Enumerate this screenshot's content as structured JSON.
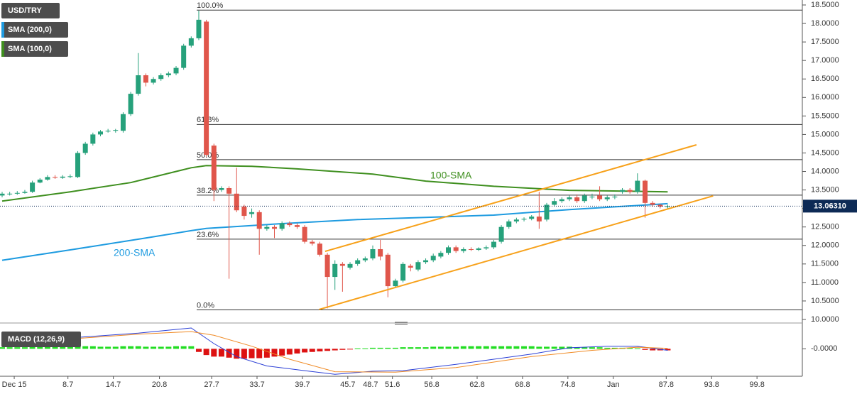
{
  "chart_data": [
    {
      "type": "candlestick",
      "xlim": [
        0,
        105.7
      ],
      "xticks": [
        {
          "value": 1.6,
          "label": "Dec 15"
        },
        8.7,
        14.7,
        20.8,
        27.7,
        33.7,
        39.7,
        45.7,
        48.7,
        51.6,
        56.8,
        62.8,
        68.8,
        74.8,
        {
          "value": 80.8,
          "label": "Jan"
        },
        87.8,
        93.8,
        99.8
      ],
      "ylim": [
        10,
        18.5
      ],
      "yticks": [
        {
          "value": 10,
          "label": "10.0000"
        },
        {
          "value": 10.5,
          "label": "10.5000"
        },
        {
          "value": 11,
          "label": "11.0000"
        },
        {
          "value": 11.5,
          "label": "11.5000"
        },
        {
          "value": 12,
          "label": "12.0000"
        },
        {
          "value": 12.5,
          "label": "12.5000"
        },
        {
          "value": 13,
          "label": "13.0000"
        },
        {
          "value": 13.5,
          "label": "13.5000"
        },
        {
          "value": 14,
          "label": "14.0000"
        },
        {
          "value": 14.5,
          "label": "14.5000"
        },
        {
          "value": 15,
          "label": "15.0000"
        },
        {
          "value": 15.5,
          "label": "15.5000"
        },
        {
          "value": 16,
          "label": "16.0000"
        },
        {
          "value": 16.5,
          "label": "16.5000"
        },
        {
          "value": 17,
          "label": "17.0000"
        },
        {
          "value": 17.5,
          "label": "17.5000"
        },
        {
          "value": 18,
          "label": "18.0000"
        },
        {
          "value": 18.5,
          "label": "18.5000"
        }
      ],
      "grid": false,
      "candles": {
        "name": "USD/TRY",
        "up_color": "#26a17b",
        "down_color": "#e0564b",
        "open": [
          13.35,
          13.4,
          13.4,
          13.42,
          13.45,
          13.7,
          13.78,
          13.85,
          13.83,
          13.86,
          13.85,
          14.5,
          14.75,
          15.0,
          15.08,
          15.1,
          15.1,
          15.55,
          16.1,
          16.6,
          16.4,
          16.5,
          16.6,
          16.65,
          16.8,
          17.4,
          17.6,
          18.05,
          14.7,
          13.5,
          13.55,
          13.4,
          13.05,
          12.85,
          12.9,
          12.45,
          12.5,
          12.45,
          12.6,
          12.55,
          12.5,
          12.1,
          12.05,
          11.75,
          11.15,
          11.5,
          11.4,
          11.5,
          11.6,
          11.65,
          11.9,
          11.75,
          10.9,
          11.05,
          11.45,
          11.35,
          11.55,
          11.6,
          11.7,
          11.8,
          11.95,
          11.85,
          11.9,
          11.88,
          11.92,
          11.95,
          12.1,
          12.5,
          12.65,
          12.7,
          12.72,
          12.78,
          12.7,
          13.1,
          13.2,
          13.25,
          13.3,
          13.2,
          13.3,
          13.35,
          13.25,
          13.3,
          13.45,
          13.5,
          13.45,
          13.75,
          13.15,
          13.1,
          13.05
        ],
        "high": [
          13.45,
          13.45,
          13.47,
          13.5,
          13.75,
          13.82,
          13.9,
          13.9,
          13.9,
          13.92,
          14.55,
          14.8,
          15.05,
          15.12,
          15.15,
          15.15,
          15.6,
          16.15,
          17.2,
          16.65,
          16.55,
          16.65,
          16.7,
          16.85,
          17.45,
          17.65,
          18.35,
          18.1,
          14.75,
          13.6,
          13.6,
          14.1,
          13.1,
          13.0,
          12.95,
          12.55,
          12.55,
          12.65,
          12.65,
          12.6,
          12.55,
          12.15,
          12.1,
          11.8,
          11.6,
          11.55,
          11.55,
          11.65,
          11.7,
          12.0,
          12.15,
          11.8,
          11.1,
          11.55,
          11.5,
          11.6,
          11.65,
          11.78,
          11.85,
          12.0,
          12.0,
          11.95,
          11.95,
          11.95,
          12.0,
          12.15,
          12.55,
          12.7,
          12.75,
          12.76,
          12.82,
          13.45,
          13.15,
          13.28,
          13.3,
          13.35,
          13.38,
          13.4,
          13.4,
          13.6,
          13.35,
          13.38,
          13.55,
          13.55,
          13.95,
          13.78,
          13.2,
          13.12,
          13.1
        ],
        "low": [
          13.3,
          13.35,
          13.37,
          13.4,
          13.42,
          13.68,
          13.75,
          13.8,
          13.8,
          13.82,
          13.82,
          14.45,
          14.7,
          14.95,
          15.05,
          15.05,
          15.05,
          15.5,
          16.05,
          16.3,
          16.35,
          16.45,
          16.55,
          16.6,
          16.75,
          17.35,
          17.55,
          14.4,
          13.2,
          13.45,
          11.1,
          12.9,
          12.7,
          12.75,
          11.75,
          12.4,
          12.2,
          12.4,
          12.5,
          12.45,
          12.05,
          12.0,
          11.7,
          10.3,
          10.8,
          10.75,
          11.35,
          11.45,
          11.55,
          11.6,
          11.6,
          10.6,
          10.85,
          11.0,
          11.3,
          11.3,
          11.5,
          11.55,
          11.65,
          11.75,
          11.8,
          11.8,
          11.85,
          11.85,
          11.88,
          11.9,
          12.05,
          12.45,
          12.6,
          12.65,
          12.68,
          12.45,
          12.65,
          13.05,
          13.15,
          13.2,
          13.15,
          13.15,
          13.25,
          13.2,
          13.2,
          13.25,
          13.4,
          13.4,
          13.4,
          12.75,
          13.05,
          13.0,
          13.0
        ],
        "close": [
          13.4,
          13.4,
          13.42,
          13.45,
          13.7,
          13.78,
          13.85,
          13.83,
          13.86,
          13.87,
          14.5,
          14.75,
          15.0,
          15.08,
          15.1,
          15.12,
          15.55,
          16.1,
          16.6,
          16.4,
          16.5,
          16.6,
          16.65,
          16.8,
          17.4,
          17.6,
          18.1,
          14.45,
          13.5,
          13.55,
          13.4,
          12.95,
          12.8,
          12.9,
          12.45,
          12.5,
          12.45,
          12.6,
          12.55,
          12.5,
          12.1,
          12.05,
          11.75,
          11.15,
          11.5,
          11.45,
          11.5,
          11.6,
          11.65,
          11.9,
          11.7,
          10.9,
          11.05,
          11.5,
          11.4,
          11.55,
          11.6,
          11.72,
          11.8,
          11.95,
          11.85,
          11.9,
          11.88,
          11.92,
          11.95,
          12.1,
          12.5,
          12.65,
          12.7,
          12.72,
          12.78,
          12.65,
          13.1,
          13.2,
          13.25,
          13.3,
          13.2,
          13.35,
          13.32,
          13.25,
          13.3,
          13.32,
          13.5,
          13.45,
          13.75,
          13.15,
          13.1,
          13.05,
          13.06
        ]
      },
      "overlays": [
        {
          "name": "SMA (200,0)",
          "color": "#1e9be0",
          "x": [
            0,
            9,
            19,
            25,
            27,
            37,
            47,
            56,
            65,
            75,
            88
          ],
          "values": [
            11.6,
            11.88,
            12.2,
            12.4,
            12.46,
            12.59,
            12.7,
            12.76,
            12.82,
            12.97,
            13.13
          ]
        },
        {
          "name": "SMA (100,0)",
          "color": "#3f8f1f",
          "x": [
            0,
            9,
            17,
            25,
            27,
            33,
            39,
            49,
            56,
            65,
            75,
            88
          ],
          "values": [
            13.2,
            13.45,
            13.7,
            14.1,
            14.16,
            14.14,
            14.07,
            13.93,
            13.74,
            13.6,
            13.49,
            13.45
          ]
        }
      ],
      "annotations": [
        "200-SMA",
        "100-SMA"
      ],
      "trendlines": [
        {
          "color": "#f7a11a",
          "x": [
            42.7,
            91.8
          ],
          "values": [
            11.84,
            14.72
          ]
        },
        {
          "color": "#f7a11a",
          "x": [
            41.9,
            94
          ],
          "values": [
            10.27,
            13.34
          ]
        }
      ],
      "levels": [
        {
          "label": "100.0%",
          "value": 18.36
        },
        {
          "label": "61.8%",
          "value": 15.27
        },
        {
          "label": "50.0%",
          "value": 14.32
        },
        {
          "label": "38.2%",
          "value": 13.36
        },
        {
          "label": "23.6%",
          "value": 12.17
        },
        {
          "label": "0.0%",
          "value": 10.26
        }
      ],
      "last_price": {
        "value": 13.0631,
        "label": "13.06310",
        "color": "#0d2a55"
      }
    },
    {
      "type": "macd",
      "title": "MACD (12,26,9)",
      "ylim": [
        -0.5,
        0.4
      ],
      "yticks": [
        {
          "value": 0,
          "label": "-0.0000"
        }
      ],
      "histogram": {
        "up_color": "#22dd22",
        "down_color": "#dd1111",
        "values": [
          0.03,
          0.03,
          0.03,
          0.03,
          0.04,
          0.04,
          0.04,
          0.04,
          0.04,
          0.04,
          0.05,
          0.05,
          0.05,
          0.04,
          0.04,
          0.04,
          0.05,
          0.05,
          0.05,
          0.04,
          0.04,
          0.04,
          0.04,
          0.05,
          0.05,
          0.05,
          -0.06,
          -0.12,
          -0.15,
          -0.15,
          -0.17,
          -0.19,
          -0.19,
          -0.18,
          -0.18,
          -0.17,
          -0.15,
          -0.13,
          -0.11,
          -0.09,
          -0.07,
          -0.06,
          -0.05,
          -0.04,
          -0.03,
          -0.02,
          -0.01,
          0.01,
          0.01,
          0.02,
          0.02,
          0.02,
          0.02,
          0.03,
          0.03,
          0.03,
          0.03,
          0.04,
          0.04,
          0.04,
          0.04,
          0.05,
          0.05,
          0.05,
          0.05,
          0.05,
          0.05,
          0.05,
          0.05,
          0.05,
          0.05,
          0.04,
          0.04,
          0.04,
          0.04,
          0.04,
          0.03,
          0.03,
          0.03,
          0.03,
          0.02,
          0.02,
          0.02,
          0.02,
          0.01,
          -0.02,
          -0.03,
          -0.03,
          -0.03
        ]
      },
      "lines": [
        {
          "color": "#2b3fd6",
          "x": [
            0,
            10,
            18,
            25,
            28,
            31,
            35,
            40,
            44,
            49,
            53,
            60,
            70,
            75,
            80,
            84,
            88
          ],
          "values": [
            0.15,
            0.22,
            0.3,
            0.4,
            0.1,
            -0.15,
            -0.33,
            -0.42,
            -0.49,
            -0.43,
            -0.42,
            -0.3,
            -0.1,
            0.02,
            0.05,
            0.05,
            -0.03
          ]
        },
        {
          "color": "#f08a24",
          "x": [
            0,
            10,
            18,
            25,
            28,
            33,
            38,
            44,
            52,
            60,
            70,
            78,
            84,
            88
          ],
          "values": [
            0.17,
            0.2,
            0.28,
            0.33,
            0.26,
            0.05,
            -0.2,
            -0.44,
            -0.45,
            -0.36,
            -0.15,
            -0.03,
            0.03,
            0.01
          ]
        }
      ]
    }
  ]
}
